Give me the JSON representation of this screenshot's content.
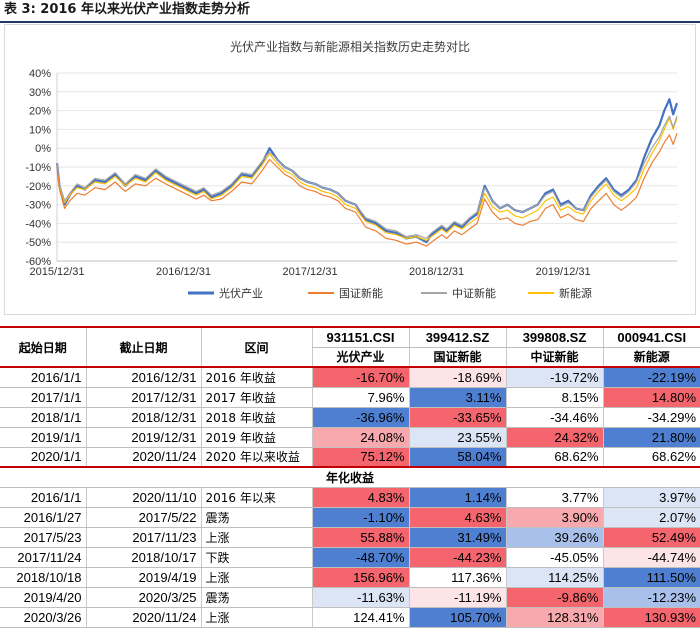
{
  "header": {
    "title": "表 3:  2016 年以来光伏产业指数走势分析"
  },
  "colors": {
    "series": [
      "#4472c4",
      "#ed7d31",
      "#a5a5a5",
      "#ffc000"
    ],
    "cell": {
      "red3": "#f4656d",
      "red2": "#f8a9ad",
      "red1": "#fde4e6",
      "white": "#ffffff",
      "blue1": "#dbe5f5",
      "blue2": "#a9c1ea",
      "blue3": "#4f7fd1"
    }
  },
  "chart_data": {
    "type": "line",
    "title": "光伏产业指数与新能源相关指数历史走势对比",
    "ylim": [
      -0.6,
      0.4
    ],
    "yticks": [
      "40%",
      "30%",
      "20%",
      "10%",
      "0%",
      "-10%",
      "-20%",
      "-30%",
      "-40%",
      "-50%",
      "-60%"
    ],
    "ytick_values": [
      0.4,
      0.3,
      0.2,
      0.1,
      0,
      -0.1,
      -0.2,
      -0.3,
      -0.4,
      -0.5,
      -0.6
    ],
    "xtick_labels": [
      "2015/12/31",
      "2016/12/31",
      "2017/12/31",
      "2018/12/31",
      "2019/12/31"
    ],
    "xtick_years": [
      0,
      1,
      2,
      3,
      4
    ],
    "xmax_years": 4.9,
    "legend_position": "bottom",
    "series": [
      {
        "name": "光伏产业",
        "x": [
          0,
          0.02,
          0.06,
          0.1,
          0.16,
          0.22,
          0.3,
          0.38,
          0.46,
          0.54,
          0.62,
          0.7,
          0.78,
          0.86,
          0.92,
          0.98,
          1.04,
          1.1,
          1.16,
          1.22,
          1.3,
          1.38,
          1.46,
          1.54,
          1.62,
          1.68,
          1.74,
          1.8,
          1.86,
          1.92,
          1.98,
          2.04,
          2.1,
          2.16,
          2.22,
          2.28,
          2.36,
          2.44,
          2.52,
          2.6,
          2.68,
          2.76,
          2.84,
          2.92,
          2.96,
          3.0,
          3.04,
          3.08,
          3.14,
          3.2,
          3.26,
          3.32,
          3.38,
          3.44,
          3.5,
          3.56,
          3.62,
          3.68,
          3.74,
          3.8,
          3.86,
          3.92,
          3.98,
          4.04,
          4.1,
          4.16,
          4.22,
          4.28,
          4.34,
          4.4,
          4.46,
          4.52,
          4.58,
          4.64,
          4.7,
          4.76,
          4.8,
          4.84,
          4.87,
          4.9
        ],
        "y": [
          -0.08,
          -0.2,
          -0.3,
          -0.25,
          -0.2,
          -0.22,
          -0.17,
          -0.18,
          -0.14,
          -0.2,
          -0.15,
          -0.17,
          -0.12,
          -0.16,
          -0.18,
          -0.2,
          -0.22,
          -0.24,
          -0.22,
          -0.26,
          -0.24,
          -0.2,
          -0.14,
          -0.15,
          -0.08,
          0.0,
          -0.06,
          -0.1,
          -0.12,
          -0.16,
          -0.18,
          -0.19,
          -0.21,
          -0.22,
          -0.24,
          -0.28,
          -0.3,
          -0.38,
          -0.4,
          -0.44,
          -0.45,
          -0.48,
          -0.47,
          -0.5,
          -0.46,
          -0.44,
          -0.42,
          -0.44,
          -0.4,
          -0.42,
          -0.38,
          -0.35,
          -0.2,
          -0.28,
          -0.32,
          -0.3,
          -0.33,
          -0.34,
          -0.32,
          -0.3,
          -0.24,
          -0.22,
          -0.3,
          -0.28,
          -0.32,
          -0.33,
          -0.25,
          -0.2,
          -0.16,
          -0.22,
          -0.25,
          -0.22,
          -0.17,
          -0.05,
          0.05,
          0.12,
          0.2,
          0.26,
          0.18,
          0.24
        ]
      },
      {
        "name": "国证新能",
        "x": [
          0,
          0.02,
          0.06,
          0.1,
          0.16,
          0.22,
          0.3,
          0.38,
          0.46,
          0.54,
          0.62,
          0.7,
          0.78,
          0.86,
          0.92,
          0.98,
          1.04,
          1.1,
          1.16,
          1.22,
          1.3,
          1.38,
          1.46,
          1.54,
          1.62,
          1.68,
          1.74,
          1.8,
          1.86,
          1.92,
          1.98,
          2.04,
          2.1,
          2.16,
          2.22,
          2.28,
          2.36,
          2.44,
          2.52,
          2.6,
          2.68,
          2.76,
          2.84,
          2.92,
          2.96,
          3.0,
          3.04,
          3.08,
          3.14,
          3.2,
          3.26,
          3.32,
          3.38,
          3.44,
          3.5,
          3.56,
          3.62,
          3.68,
          3.74,
          3.8,
          3.86,
          3.92,
          3.98,
          4.04,
          4.1,
          4.16,
          4.22,
          4.28,
          4.34,
          4.4,
          4.46,
          4.52,
          4.58,
          4.64,
          4.7,
          4.76,
          4.8,
          4.84,
          4.87,
          4.9
        ],
        "y": [
          -0.1,
          -0.22,
          -0.32,
          -0.28,
          -0.24,
          -0.25,
          -0.21,
          -0.22,
          -0.18,
          -0.23,
          -0.19,
          -0.2,
          -0.16,
          -0.19,
          -0.21,
          -0.23,
          -0.25,
          -0.27,
          -0.25,
          -0.28,
          -0.27,
          -0.23,
          -0.18,
          -0.19,
          -0.12,
          -0.06,
          -0.1,
          -0.14,
          -0.16,
          -0.2,
          -0.22,
          -0.23,
          -0.25,
          -0.26,
          -0.28,
          -0.32,
          -0.34,
          -0.42,
          -0.44,
          -0.48,
          -0.49,
          -0.51,
          -0.5,
          -0.52,
          -0.5,
          -0.48,
          -0.46,
          -0.48,
          -0.44,
          -0.46,
          -0.43,
          -0.4,
          -0.27,
          -0.34,
          -0.38,
          -0.37,
          -0.4,
          -0.41,
          -0.39,
          -0.38,
          -0.32,
          -0.3,
          -0.37,
          -0.35,
          -0.38,
          -0.39,
          -0.32,
          -0.28,
          -0.24,
          -0.3,
          -0.33,
          -0.3,
          -0.26,
          -0.16,
          -0.08,
          -0.02,
          0.03,
          0.07,
          0.02,
          0.08
        ]
      },
      {
        "name": "中证新能",
        "x": [
          0,
          0.02,
          0.06,
          0.1,
          0.16,
          0.22,
          0.3,
          0.38,
          0.46,
          0.54,
          0.62,
          0.7,
          0.78,
          0.86,
          0.92,
          0.98,
          1.04,
          1.1,
          1.16,
          1.22,
          1.3,
          1.38,
          1.46,
          1.54,
          1.62,
          1.68,
          1.74,
          1.8,
          1.86,
          1.92,
          1.98,
          2.04,
          2.1,
          2.16,
          2.22,
          2.28,
          2.36,
          2.44,
          2.52,
          2.6,
          2.68,
          2.76,
          2.84,
          2.92,
          2.96,
          3.0,
          3.04,
          3.08,
          3.14,
          3.2,
          3.26,
          3.32,
          3.38,
          3.44,
          3.5,
          3.56,
          3.62,
          3.68,
          3.74,
          3.8,
          3.86,
          3.92,
          3.98,
          4.04,
          4.1,
          4.16,
          4.22,
          4.28,
          4.34,
          4.4,
          4.46,
          4.52,
          4.58,
          4.64,
          4.7,
          4.76,
          4.8,
          4.84,
          4.87,
          4.9
        ],
        "y": [
          -0.08,
          -0.19,
          -0.28,
          -0.24,
          -0.19,
          -0.21,
          -0.16,
          -0.17,
          -0.13,
          -0.19,
          -0.14,
          -0.16,
          -0.11,
          -0.15,
          -0.17,
          -0.19,
          -0.21,
          -0.23,
          -0.21,
          -0.25,
          -0.23,
          -0.19,
          -0.13,
          -0.14,
          -0.07,
          -0.02,
          -0.06,
          -0.1,
          -0.12,
          -0.16,
          -0.18,
          -0.19,
          -0.21,
          -0.22,
          -0.24,
          -0.28,
          -0.3,
          -0.37,
          -0.39,
          -0.43,
          -0.44,
          -0.47,
          -0.46,
          -0.48,
          -0.45,
          -0.43,
          -0.41,
          -0.43,
          -0.39,
          -0.41,
          -0.37,
          -0.34,
          -0.21,
          -0.28,
          -0.32,
          -0.3,
          -0.33,
          -0.34,
          -0.32,
          -0.3,
          -0.25,
          -0.23,
          -0.31,
          -0.29,
          -0.32,
          -0.33,
          -0.26,
          -0.21,
          -0.17,
          -0.23,
          -0.26,
          -0.23,
          -0.18,
          -0.08,
          0.0,
          0.06,
          0.12,
          0.17,
          0.11,
          0.17
        ]
      },
      {
        "name": "新能源",
        "x": [
          0,
          0.02,
          0.06,
          0.1,
          0.16,
          0.22,
          0.3,
          0.38,
          0.46,
          0.54,
          0.62,
          0.7,
          0.78,
          0.86,
          0.92,
          0.98,
          1.04,
          1.1,
          1.16,
          1.22,
          1.3,
          1.38,
          1.46,
          1.54,
          1.62,
          1.68,
          1.74,
          1.8,
          1.86,
          1.92,
          1.98,
          2.04,
          2.1,
          2.16,
          2.22,
          2.28,
          2.36,
          2.44,
          2.52,
          2.6,
          2.68,
          2.76,
          2.84,
          2.92,
          2.96,
          3.0,
          3.04,
          3.08,
          3.14,
          3.2,
          3.26,
          3.32,
          3.38,
          3.44,
          3.5,
          3.56,
          3.62,
          3.68,
          3.74,
          3.8,
          3.86,
          3.92,
          3.98,
          4.04,
          4.1,
          4.16,
          4.22,
          4.28,
          4.34,
          4.4,
          4.46,
          4.52,
          4.58,
          4.64,
          4.7,
          4.76,
          4.8,
          4.84,
          4.87,
          4.9
        ],
        "y": [
          -0.09,
          -0.2,
          -0.29,
          -0.25,
          -0.21,
          -0.22,
          -0.18,
          -0.19,
          -0.15,
          -0.2,
          -0.16,
          -0.18,
          -0.13,
          -0.17,
          -0.19,
          -0.21,
          -0.23,
          -0.25,
          -0.23,
          -0.27,
          -0.25,
          -0.21,
          -0.15,
          -0.16,
          -0.09,
          -0.03,
          -0.08,
          -0.12,
          -0.14,
          -0.18,
          -0.2,
          -0.21,
          -0.23,
          -0.24,
          -0.26,
          -0.3,
          -0.32,
          -0.39,
          -0.41,
          -0.45,
          -0.46,
          -0.48,
          -0.47,
          -0.49,
          -0.47,
          -0.45,
          -0.43,
          -0.45,
          -0.41,
          -0.43,
          -0.4,
          -0.37,
          -0.24,
          -0.31,
          -0.34,
          -0.33,
          -0.36,
          -0.37,
          -0.35,
          -0.33,
          -0.28,
          -0.26,
          -0.33,
          -0.31,
          -0.34,
          -0.35,
          -0.28,
          -0.23,
          -0.19,
          -0.25,
          -0.28,
          -0.25,
          -0.21,
          -0.11,
          -0.03,
          0.04,
          0.1,
          0.16,
          0.1,
          0.16
        ]
      }
    ]
  },
  "table": {
    "col_headers": {
      "start": "起始日期",
      "end": "截止日期",
      "range": "区间",
      "codes": [
        "931151.CSI",
        "399412.SZ",
        "399808.SZ",
        "000941.CSI"
      ],
      "names": [
        "光伏产业",
        "国证新能",
        "中证新能",
        "新能源"
      ]
    },
    "section1_rows": [
      {
        "start": "2016/1/1",
        "end": "2016/12/31",
        "label": "2016 年收益",
        "values": [
          "-16.70%",
          "-18.69%",
          "-19.72%",
          "-22.19%"
        ],
        "shades": [
          "red3",
          "red1",
          "blue1",
          "blue3"
        ]
      },
      {
        "start": "2017/1/1",
        "end": "2017/12/31",
        "label": "2017 年收益",
        "values": [
          "7.96%",
          "3.11%",
          "8.15%",
          "14.80%"
        ],
        "shades": [
          "white",
          "blue3",
          "white",
          "red3"
        ]
      },
      {
        "start": "2018/1/1",
        "end": "2018/12/31",
        "label": "2018 年收益",
        "values": [
          "-36.96%",
          "-33.65%",
          "-34.46%",
          "-34.29%"
        ],
        "shades": [
          "blue3",
          "red3",
          "white",
          "white"
        ]
      },
      {
        "start": "2019/1/1",
        "end": "2019/12/31",
        "label": "2019 年收益",
        "values": [
          "24.08%",
          "23.55%",
          "24.32%",
          "21.80%"
        ],
        "shades": [
          "red2",
          "blue1",
          "red3",
          "blue3"
        ]
      },
      {
        "start": "2020/1/1",
        "end": "2020/11/24",
        "label": "2020 年以来收益",
        "values": [
          "75.12%",
          "58.04%",
          "68.62%",
          "68.62%"
        ],
        "shades": [
          "red3",
          "blue3",
          "white",
          "white"
        ]
      }
    ],
    "section2_title": "年化收益",
    "section2_rows": [
      {
        "start": "2016/1/1",
        "end": "2020/11/10",
        "label": "2016 年以来",
        "values": [
          "4.83%",
          "1.14%",
          "3.77%",
          "3.97%"
        ],
        "shades": [
          "red3",
          "blue3",
          "white",
          "blue1"
        ]
      },
      {
        "start": "2016/1/27",
        "end": "2017/5/22",
        "label": "震荡",
        "values": [
          "-1.10%",
          "4.63%",
          "3.90%",
          "2.07%"
        ],
        "shades": [
          "blue3",
          "red3",
          "red2",
          "blue1"
        ]
      },
      {
        "start": "2017/5/23",
        "end": "2017/11/23",
        "label": "上涨",
        "values": [
          "55.88%",
          "31.49%",
          "39.26%",
          "52.49%"
        ],
        "shades": [
          "red3",
          "blue3",
          "blue2",
          "red3"
        ]
      },
      {
        "start": "2017/11/24",
        "end": "2018/10/17",
        "label": "下跌",
        "values": [
          "-48.70%",
          "-44.23%",
          "-45.05%",
          "-44.74%"
        ],
        "shades": [
          "blue3",
          "red3",
          "white",
          "red1"
        ]
      },
      {
        "start": "2018/10/18",
        "end": "2019/4/19",
        "label": "上涨",
        "values": [
          "156.96%",
          "117.36%",
          "114.25%",
          "111.50%"
        ],
        "shades": [
          "red3",
          "white",
          "blue1",
          "blue3"
        ]
      },
      {
        "start": "2019/4/20",
        "end": "2020/3/25",
        "label": "震荡",
        "values": [
          "-11.63%",
          "-11.19%",
          "-9.86%",
          "-12.23%"
        ],
        "shades": [
          "blue1",
          "red1",
          "red3",
          "blue2"
        ]
      },
      {
        "start": "2020/3/26",
        "end": "2020/11/24",
        "label": "上涨",
        "values": [
          "124.41%",
          "105.70%",
          "128.31%",
          "130.93%"
        ],
        "shades": [
          "white",
          "blue3",
          "red2",
          "red3"
        ]
      }
    ]
  }
}
